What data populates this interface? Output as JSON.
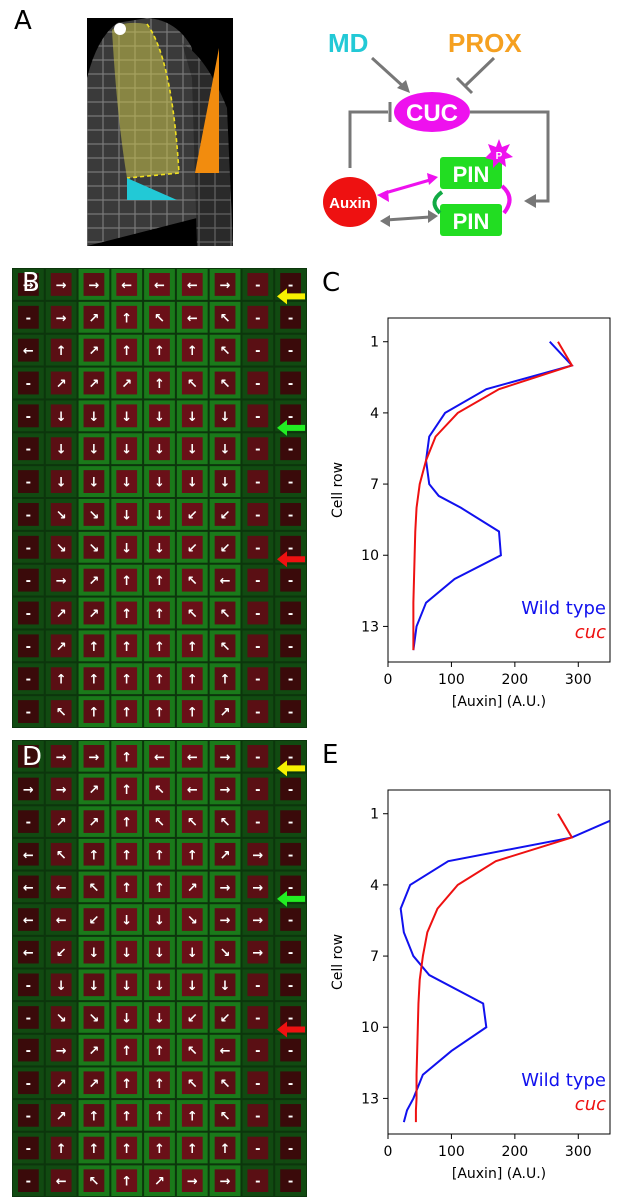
{
  "panels": {
    "A": "A",
    "B": "B",
    "C": "C",
    "D": "D",
    "E": "E"
  },
  "diagram": {
    "md": "MD",
    "prox": "PROX",
    "cuc": "CUC",
    "auxin": "Auxin",
    "pin_top": "PIN",
    "pin_bottom": "PIN",
    "phospho": "P"
  },
  "colors": {
    "md": "#22c9d6",
    "prox": "#f5a020",
    "cuc": "#ee11ee",
    "auxin": "#ee1111",
    "pin": "#22dd22",
    "wild_type": "#1111ee",
    "cuc_mutant": "#ee1111"
  },
  "grid_B": {
    "rows": [
      [
        "→",
        "→",
        "→",
        "←",
        "←",
        "←",
        "→",
        "-"
      ],
      [
        "-",
        "→",
        "↗",
        "↑",
        "↖",
        "←",
        "↖",
        "-"
      ],
      [
        "←",
        "↑",
        "↗",
        "↑",
        "↑",
        "↑",
        "↖",
        "-"
      ],
      [
        "-",
        "↗",
        "↗",
        "↗",
        "↑",
        "↖",
        "↖",
        "-"
      ],
      [
        "-",
        "↓",
        "↓",
        "↓",
        "↓",
        "↓",
        "↓",
        "-"
      ],
      [
        "-",
        "↓",
        "↓",
        "↓",
        "↓",
        "↓",
        "↓",
        "-"
      ],
      [
        "-",
        "↓",
        "↓",
        "↓",
        "↓",
        "↓",
        "↓",
        "-"
      ],
      [
        "-",
        "↘",
        "↘",
        "↓",
        "↓",
        "↙",
        "↙",
        "-"
      ],
      [
        "-",
        "↘",
        "↘",
        "↓",
        "↓",
        "↙",
        "↙",
        "-"
      ],
      [
        "-",
        "→",
        "↗",
        "↑",
        "↑",
        "↖",
        "←",
        "-"
      ],
      [
        "-",
        "↗",
        "↗",
        "↑",
        "↑",
        "↖",
        "↖",
        "-"
      ],
      [
        "-",
        "↗",
        "↑",
        "↑",
        "↑",
        "↑",
        "↖",
        "-"
      ],
      [
        "-",
        "↑",
        "↑",
        "↑",
        "↑",
        "↑",
        "↑",
        "-"
      ],
      [
        "-",
        "↖",
        "↑",
        "↑",
        "↑",
        "↑",
        "↗",
        "-"
      ]
    ],
    "arrows": [
      "yellow",
      "green",
      "red"
    ]
  },
  "grid_D": {
    "rows": [
      [
        "-",
        "→",
        "→",
        "↑",
        "←",
        "←",
        "→",
        "-"
      ],
      [
        "→",
        "→",
        "↗",
        "↑",
        "↖",
        "←",
        "→",
        "-"
      ],
      [
        "-",
        "↗",
        "↗",
        "↑",
        "↖",
        "↖",
        "↖",
        "-"
      ],
      [
        "←",
        "↖",
        "↑",
        "↑",
        "↑",
        "↑",
        "↗",
        "→"
      ],
      [
        "←",
        "←",
        "↖",
        "↑",
        "↑",
        "↗",
        "→",
        "→"
      ],
      [
        "←",
        "←",
        "↙",
        "↓",
        "↓",
        "↘",
        "→",
        "→"
      ],
      [
        "←",
        "↙",
        "↓",
        "↓",
        "↓",
        "↓",
        "↘",
        "→"
      ],
      [
        "-",
        "↓",
        "↓",
        "↓",
        "↓",
        "↓",
        "↓",
        "-"
      ],
      [
        "-",
        "↘",
        "↘",
        "↓",
        "↓",
        "↙",
        "↙",
        "-"
      ],
      [
        "-",
        "→",
        "↗",
        "↑",
        "↑",
        "↖",
        "←",
        "-"
      ],
      [
        "-",
        "↗",
        "↗",
        "↑",
        "↑",
        "↖",
        "↖",
        "-"
      ],
      [
        "-",
        "↗",
        "↑",
        "↑",
        "↑",
        "↑",
        "↖",
        "-"
      ],
      [
        "-",
        "↑",
        "↑",
        "↑",
        "↑",
        "↑",
        "↑",
        "-"
      ],
      [
        "-",
        "←",
        "↖",
        "↑",
        "↗",
        "→",
        "→",
        "-"
      ]
    ],
    "arrows": [
      "yellow",
      "green",
      "red"
    ]
  },
  "chart_data": [
    {
      "type": "line",
      "panel": "C",
      "title": "",
      "xlabel": "[Auxin] (A.U.)",
      "ylabel": "Cell row",
      "xlim": [
        0,
        350
      ],
      "ylim": [
        14.5,
        0
      ],
      "xticks": [
        0,
        100,
        200,
        300
      ],
      "yticks": [
        1,
        4,
        7,
        10,
        13
      ],
      "legend": "bottom-right",
      "series": [
        {
          "name": "Wild type",
          "color": "#1111ee",
          "x": [
            255,
            290,
            155,
            90,
            65,
            60,
            65,
            80,
            115,
            175,
            178,
            105,
            60,
            45,
            40
          ],
          "y": [
            1,
            2,
            3,
            4,
            5,
            6,
            7,
            7.5,
            8,
            9,
            10,
            11,
            12,
            13,
            14
          ]
        },
        {
          "name": "cuc",
          "color": "#ee1111",
          "x": [
            268,
            290,
            175,
            110,
            75,
            60,
            50,
            45,
            43,
            42,
            41,
            40,
            40,
            40,
            40
          ],
          "y": [
            1,
            2,
            3,
            4,
            5,
            6,
            7,
            8,
            9,
            10,
            11,
            12,
            13,
            13.5,
            14
          ]
        }
      ]
    },
    {
      "type": "line",
      "panel": "E",
      "title": "",
      "xlabel": "[Auxin] (A.U.)",
      "ylabel": "Cell row",
      "xlim": [
        0,
        350
      ],
      "ylim": [
        14.5,
        0
      ],
      "xticks": [
        0,
        100,
        200,
        300
      ],
      "yticks": [
        1,
        4,
        7,
        10,
        13
      ],
      "legend": "bottom-right",
      "series": [
        {
          "name": "Wild type",
          "color": "#1111ee",
          "x": [
            350,
            290,
            95,
            35,
            20,
            25,
            40,
            65,
            150,
            155,
            100,
            55,
            40,
            30,
            25
          ],
          "y": [
            1.3,
            2,
            3,
            4,
            5,
            6,
            7,
            7.8,
            9,
            10,
            11,
            12,
            13,
            13.5,
            14
          ]
        },
        {
          "name": "cuc",
          "color": "#ee1111",
          "x": [
            268,
            290,
            170,
            110,
            78,
            62,
            55,
            50,
            48,
            47,
            46,
            45,
            45,
            44,
            44
          ],
          "y": [
            1,
            2,
            3,
            4,
            5,
            6,
            7,
            8,
            9,
            10,
            11,
            12,
            13,
            13.5,
            14
          ]
        }
      ]
    }
  ]
}
